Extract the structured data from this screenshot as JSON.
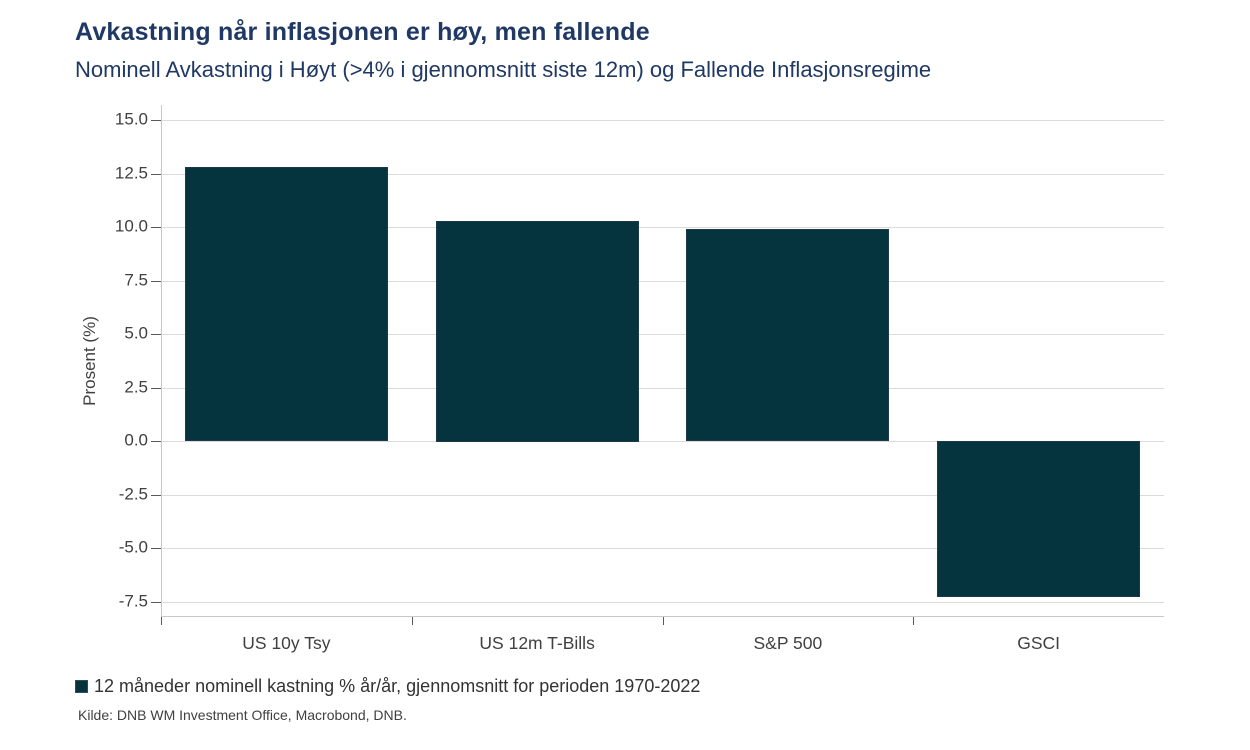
{
  "chart_data": {
    "type": "bar",
    "title": "Avkastning når inflasjonen er høy, men fallende",
    "subtitle": "Nominell Avkastning i Høyt (>4% i gjennomsnitt siste 12m) og Fallende Inflasjonsregime",
    "categories": [
      "US 10y Tsy",
      "US 12m T-Bills",
      "S&P 500",
      "GSCI"
    ],
    "values": [
      12.8,
      10.3,
      9.9,
      -7.3
    ],
    "xlabel": "",
    "ylabel": "Prosent (%)",
    "yticks": [
      15.0,
      12.5,
      10.0,
      7.5,
      5.0,
      2.5,
      0.0,
      -2.5,
      -5.0,
      -7.5
    ],
    "ytick_labels": [
      "15.0",
      "12.5",
      "10.0",
      "7.5",
      "5.0",
      "2.5",
      "0.0",
      "-2.5",
      "-5.0",
      "-7.5"
    ],
    "ylim": [
      -8.2,
      15.7
    ],
    "grid": true,
    "bar_width_fraction": 0.81,
    "legend_label": "12 måneder nominell kastning % år/år, gjennomsnitt for perioden 1970-2022",
    "legend_position": "bottom-left"
  },
  "footer": {
    "source": "Kilde: DNB WM Investment Office, Macrobond, DNB."
  },
  "colors": {
    "title": "#1F3864",
    "bar": "#05343F",
    "bar_border": "#1C3A47",
    "grid": "#DBDBDB",
    "axis": "#C9C9C9",
    "tick": "#595959",
    "axis_text": "#404040"
  }
}
